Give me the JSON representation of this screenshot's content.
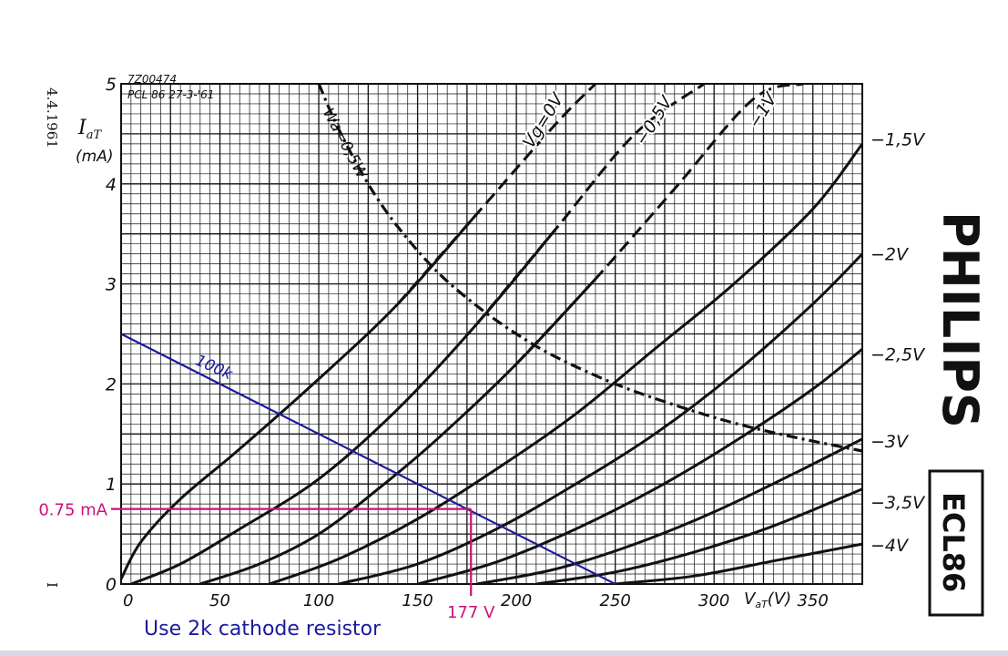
{
  "chart_data": {
    "type": "line",
    "header": {
      "code": "7Z00474",
      "ref": "PCL 86  27-3-'61"
    },
    "side_date": "4.4.1961",
    "side_mark": "I",
    "brand": "PHILIPS",
    "model": "ECL86",
    "xlabel": "V",
    "xlabel_sub": "aT",
    "xlabel_unit": "(V)",
    "ylabel": "I",
    "ylabel_sub": "aT",
    "ylabel_unit": "(mA)",
    "xlim": [
      0,
      375
    ],
    "ylim": [
      0,
      5
    ],
    "x_ticks": [
      "0",
      "50",
      "100",
      "150",
      "200",
      "250",
      "300",
      "350"
    ],
    "y_ticks": [
      "0",
      "1",
      "2",
      "3",
      "4",
      "5"
    ],
    "grid": true,
    "colors": {
      "ink": "#111111",
      "loadline": "#1a1a9e",
      "marker": "#cc1177",
      "note": "#1a1a9e"
    },
    "series": [
      {
        "name": "Vg=0V",
        "style": "solid-to-dashed",
        "x": [
          0,
          10,
          30,
          60,
          100,
          140,
          180,
          220,
          240
        ],
        "y": [
          0.05,
          0.42,
          0.85,
          1.35,
          2.05,
          2.8,
          3.7,
          4.6,
          5.0
        ]
      },
      {
        "name": "-0,5V",
        "style": "solid-to-dashed",
        "x": [
          5,
          30,
          60,
          100,
          140,
          180,
          220,
          260,
          295
        ],
        "y": [
          0,
          0.2,
          0.55,
          1.05,
          1.75,
          2.6,
          3.55,
          4.5,
          5.0
        ]
      },
      {
        "name": "-1V",
        "style": "solid-to-dashed",
        "x": [
          40,
          70,
          100,
          130,
          160,
          200,
          240,
          280,
          320,
          345
        ],
        "y": [
          0,
          0.2,
          0.5,
          0.95,
          1.45,
          2.2,
          3.05,
          3.95,
          4.85,
          5.0
        ]
      },
      {
        "name": "-1,5V",
        "x": [
          75,
          110,
          150,
          190,
          230,
          270,
          310,
          350,
          375
        ],
        "y": [
          0,
          0.25,
          0.65,
          1.15,
          1.7,
          2.35,
          3.0,
          3.75,
          4.4
        ]
      },
      {
        "name": "-2V",
        "x": [
          110,
          150,
          190,
          230,
          270,
          310,
          350,
          375
        ],
        "y": [
          0,
          0.2,
          0.55,
          1.0,
          1.5,
          2.1,
          2.8,
          3.3
        ]
      },
      {
        "name": "-2,5V",
        "x": [
          150,
          190,
          230,
          270,
          310,
          350,
          375
        ],
        "y": [
          0,
          0.22,
          0.55,
          0.95,
          1.42,
          1.95,
          2.35
        ]
      },
      {
        "name": "-3V",
        "x": [
          180,
          220,
          260,
          300,
          340,
          375
        ],
        "y": [
          0,
          0.15,
          0.4,
          0.72,
          1.1,
          1.45
        ]
      },
      {
        "name": "-3,5V",
        "x": [
          210,
          250,
          290,
          330,
          375
        ],
        "y": [
          0,
          0.12,
          0.32,
          0.58,
          0.95
        ]
      },
      {
        "name": "-4V",
        "x": [
          250,
          290,
          330,
          375
        ],
        "y": [
          0,
          0.08,
          0.23,
          0.4
        ]
      }
    ],
    "curve_labels": [
      {
        "text": "Vg=0V",
        "x": 216,
        "y": 4.6
      },
      {
        "text": "−0,5V",
        "x": 272,
        "y": 4.6
      },
      {
        "text": "−1V",
        "x": 327,
        "y": 4.7
      }
    ],
    "right_labels": [
      {
        "text": "−1,5V",
        "y": 4.45
      },
      {
        "text": "−2V",
        "y": 3.3
      },
      {
        "text": "−2,5V",
        "y": 2.3
      },
      {
        "text": "−3V",
        "y": 1.43
      },
      {
        "text": "−3,5V",
        "y": 0.82
      },
      {
        "text": "−4V",
        "y": 0.39
      }
    ],
    "power_curve": {
      "name": "Wa=0,5W",
      "x": [
        100,
        110,
        125,
        140,
        160,
        180,
        200,
        220,
        250,
        280,
        310,
        340,
        375
      ],
      "y": [
        5.0,
        4.55,
        4.0,
        3.57,
        3.12,
        2.78,
        2.5,
        2.27,
        2.0,
        1.79,
        1.61,
        1.47,
        1.33
      ]
    },
    "load_line": {
      "name": "100k",
      "x": [
        0,
        250
      ],
      "y": [
        2.5,
        0
      ]
    },
    "operating_point": {
      "x": 177,
      "y": 0.75,
      "x_label": "177 V",
      "y_label": "0.75 mA"
    },
    "note": "Use 2k cathode resistor"
  }
}
